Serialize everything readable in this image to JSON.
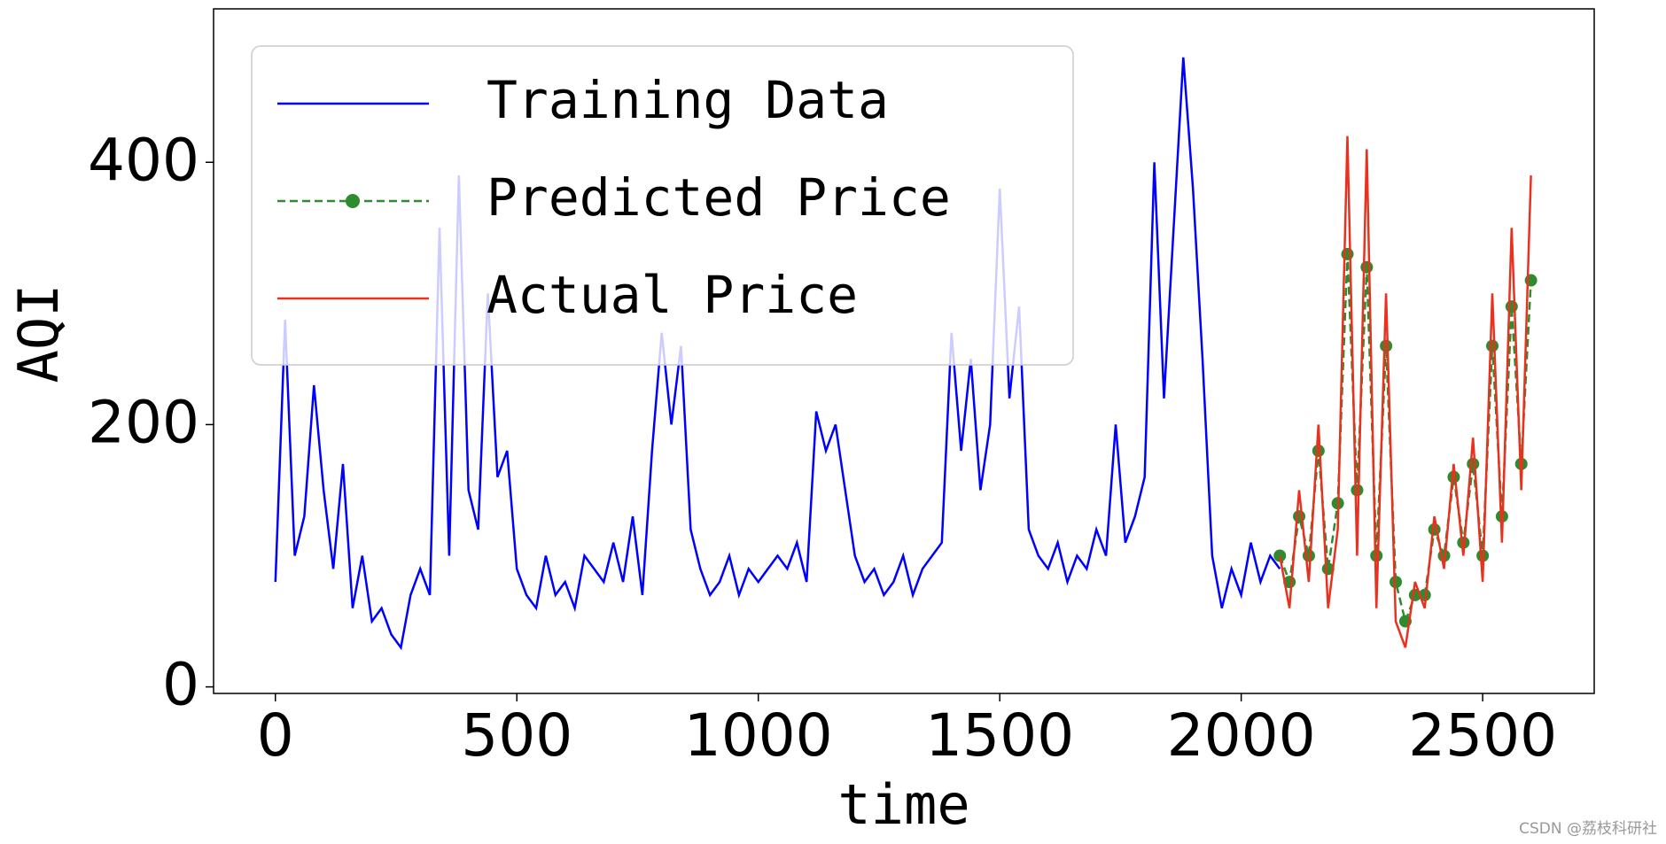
{
  "chart_data": {
    "type": "line",
    "xlabel": "time",
    "ylabel": "AQI",
    "xlim": [
      -128,
      2731
    ],
    "ylim": [
      -5,
      517
    ],
    "xticks": [
      0,
      500,
      1000,
      1500,
      2000,
      2500
    ],
    "yticks": [
      0,
      200,
      400
    ],
    "legend": "upper left",
    "series": [
      {
        "name": "Training Data",
        "color": "#0000ff",
        "linestyle": "solid",
        "x": [
          0,
          20,
          40,
          60,
          80,
          100,
          120,
          140,
          160,
          180,
          200,
          220,
          240,
          260,
          280,
          300,
          320,
          340,
          360,
          380,
          400,
          420,
          440,
          460,
          480,
          500,
          520,
          540,
          560,
          580,
          600,
          620,
          640,
          660,
          680,
          700,
          720,
          740,
          760,
          780,
          800,
          820,
          840,
          860,
          880,
          900,
          920,
          940,
          960,
          980,
          1000,
          1020,
          1040,
          1060,
          1080,
          1100,
          1120,
          1140,
          1160,
          1180,
          1200,
          1220,
          1240,
          1260,
          1280,
          1300,
          1320,
          1340,
          1360,
          1380,
          1400,
          1420,
          1440,
          1460,
          1480,
          1500,
          1520,
          1540,
          1560,
          1580,
          1600,
          1620,
          1640,
          1660,
          1680,
          1700,
          1720,
          1740,
          1760,
          1780,
          1800,
          1820,
          1840,
          1860,
          1880,
          1900,
          1920,
          1940,
          1960,
          1980,
          2000,
          2020,
          2040,
          2060,
          2080
        ],
        "values": [
          80,
          280,
          100,
          130,
          230,
          150,
          90,
          170,
          60,
          100,
          50,
          60,
          40,
          30,
          70,
          90,
          70,
          350,
          100,
          390,
          150,
          120,
          300,
          160,
          180,
          90,
          70,
          60,
          100,
          70,
          80,
          60,
          100,
          90,
          80,
          110,
          80,
          130,
          70,
          180,
          270,
          200,
          260,
          120,
          90,
          70,
          80,
          100,
          70,
          90,
          80,
          90,
          100,
          90,
          110,
          80,
          210,
          180,
          200,
          150,
          100,
          80,
          90,
          70,
          80,
          100,
          70,
          90,
          100,
          110,
          270,
          180,
          250,
          150,
          200,
          380,
          220,
          290,
          120,
          100,
          90,
          110,
          80,
          100,
          90,
          120,
          100,
          200,
          110,
          130,
          160,
          400,
          220,
          350,
          480,
          380,
          250,
          100,
          60,
          90,
          70,
          110,
          80,
          100,
          90
        ]
      },
      {
        "name": "Predicted Price",
        "color": "#2e8b2e",
        "linestyle": "dashed",
        "marker": "o",
        "x": [
          2080,
          2100,
          2120,
          2140,
          2160,
          2180,
          2200,
          2220,
          2240,
          2260,
          2280,
          2300,
          2320,
          2340,
          2360,
          2380,
          2400,
          2420,
          2440,
          2460,
          2480,
          2500,
          2520,
          2540,
          2560,
          2580,
          2600
        ],
        "values": [
          100,
          80,
          130,
          100,
          180,
          90,
          140,
          330,
          150,
          320,
          100,
          260,
          80,
          50,
          70,
          70,
          120,
          100,
          160,
          110,
          170,
          100,
          260,
          130,
          290,
          170,
          310
        ]
      },
      {
        "name": "Actual Price",
        "color": "#e8321f",
        "linestyle": "solid",
        "x": [
          2080,
          2100,
          2120,
          2140,
          2160,
          2180,
          2200,
          2220,
          2240,
          2260,
          2280,
          2300,
          2320,
          2340,
          2360,
          2380,
          2400,
          2420,
          2440,
          2460,
          2480,
          2500,
          2520,
          2540,
          2560,
          2580,
          2600
        ],
        "values": [
          100,
          60,
          150,
          80,
          200,
          60,
          120,
          420,
          100,
          410,
          60,
          300,
          50,
          30,
          80,
          60,
          130,
          90,
          170,
          100,
          190,
          80,
          300,
          110,
          350,
          150,
          390
        ]
      }
    ]
  },
  "watermark": "CSDN @荔枝科研社"
}
